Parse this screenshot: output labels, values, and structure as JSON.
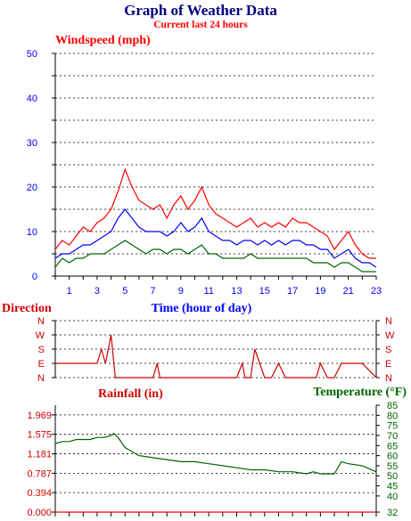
{
  "header": {
    "title": "Graph of Weather Data",
    "subtitle": "Current last 24 hours"
  },
  "colors": {
    "title": "#000080",
    "red": "#ff0000",
    "blue": "#0000ff",
    "green": "#006400",
    "darkred": "#cc0000",
    "axis": "#000000"
  },
  "chart_data": [
    {
      "type": "line",
      "panel": "wind",
      "title": "Windspeed (mph)",
      "xlabel": "Time (hour of day)",
      "ylabel": "Windspeed (mph)",
      "xlim": [
        0,
        23
      ],
      "ylim": [
        0,
        50
      ],
      "yticks": [
        0,
        10,
        20,
        30,
        40,
        50
      ],
      "xticks": [
        "1",
        "3",
        "5",
        "7",
        "9",
        "11",
        "13",
        "15",
        "17",
        "19",
        "21",
        "23"
      ],
      "grid": true,
      "series": [
        {
          "color": "#ff0000",
          "x": [
            0,
            0.5,
            1,
            1.5,
            2,
            2.5,
            3,
            3.5,
            4,
            4.5,
            5,
            5.5,
            6,
            6.5,
            7,
            7.5,
            8,
            8.5,
            9,
            9.5,
            10,
            10.5,
            11,
            11.5,
            12,
            12.5,
            13,
            13.5,
            14,
            14.5,
            15,
            15.5,
            16,
            16.5,
            17,
            17.5,
            18,
            18.5,
            19,
            19.5,
            20,
            20.5,
            21,
            21.5,
            22,
            22.5,
            23
          ],
          "values": [
            6,
            8,
            7,
            9,
            11,
            10,
            12,
            13,
            15,
            19,
            24,
            20,
            17,
            16,
            15,
            16,
            13,
            16,
            18,
            15,
            17,
            20,
            16,
            14,
            13,
            12,
            11,
            12,
            13,
            11,
            12,
            11,
            12,
            11,
            13,
            12,
            12,
            11,
            10,
            9,
            6,
            8,
            10,
            7,
            5,
            4,
            4
          ]
        },
        {
          "color": "#0000ff",
          "x": [
            0,
            0.5,
            1,
            1.5,
            2,
            2.5,
            3,
            3.5,
            4,
            4.5,
            5,
            5.5,
            6,
            6.5,
            7,
            7.5,
            8,
            8.5,
            9,
            9.5,
            10,
            10.5,
            11,
            11.5,
            12,
            12.5,
            13,
            13.5,
            14,
            14.5,
            15,
            15.5,
            16,
            16.5,
            17,
            17.5,
            18,
            18.5,
            19,
            19.5,
            20,
            20.5,
            21,
            21.5,
            22,
            22.5,
            23
          ],
          "values": [
            4,
            5,
            5,
            6,
            7,
            7,
            8,
            9,
            10,
            13,
            15,
            13,
            11,
            10,
            10,
            10,
            9,
            10,
            12,
            10,
            11,
            13,
            10,
            9,
            8,
            8,
            7,
            8,
            8,
            7,
            8,
            7,
            8,
            7,
            8,
            8,
            7,
            7,
            6,
            6,
            4,
            5,
            6,
            4,
            3,
            3,
            2
          ]
        },
        {
          "color": "#006400",
          "x": [
            0,
            0.5,
            1,
            1.5,
            2,
            2.5,
            3,
            3.5,
            4,
            4.5,
            5,
            5.5,
            6,
            6.5,
            7,
            7.5,
            8,
            8.5,
            9,
            9.5,
            10,
            10.5,
            11,
            11.5,
            12,
            12.5,
            13,
            13.5,
            14,
            14.5,
            15,
            15.5,
            16,
            16.5,
            17,
            17.5,
            18,
            18.5,
            19,
            19.5,
            20,
            20.5,
            21,
            21.5,
            22,
            22.5,
            23
          ],
          "values": [
            2,
            4,
            3,
            4,
            4,
            5,
            5,
            5,
            6,
            7,
            8,
            7,
            6,
            5,
            6,
            6,
            5,
            6,
            6,
            5,
            6,
            7,
            5,
            5,
            4,
            4,
            4,
            4,
            5,
            4,
            4,
            4,
            4,
            4,
            4,
            4,
            4,
            3,
            3,
            3,
            2,
            3,
            3,
            2,
            1,
            1,
            1
          ]
        }
      ]
    },
    {
      "type": "line",
      "panel": "direction",
      "title": "Direction",
      "xlim": [
        0,
        23
      ],
      "yticks": [
        "N",
        "W",
        "S",
        "E",
        "N"
      ],
      "grid": true,
      "series": [
        {
          "color": "#cc0000",
          "x": [
            0,
            1,
            2,
            3,
            3.3,
            3.6,
            4,
            4.3,
            4.6,
            5,
            6,
            7,
            7.3,
            7.5,
            8,
            9,
            10,
            11,
            12,
            13,
            13.4,
            13.6,
            14,
            14.3,
            15,
            15.5,
            16,
            16.5,
            17,
            18,
            18.7,
            19,
            19.5,
            20,
            20.5,
            21,
            22,
            23
          ],
          "values": [
            "E",
            "E",
            "E",
            "E",
            "S",
            "E",
            "W",
            "N",
            "N",
            "N",
            "N",
            "N",
            "E",
            "N",
            "N",
            "N",
            "N",
            "N",
            "N",
            "N",
            "E",
            "N",
            "N",
            "S",
            "N",
            "N",
            "E",
            "N",
            "N",
            "N",
            "N",
            "E",
            "N",
            "N",
            "E",
            "E",
            "E",
            "N"
          ]
        }
      ]
    },
    {
      "type": "line",
      "panel": "rain-temp",
      "title": "Rainfall (in) / Temperature (°F)",
      "ylabel_left": "Rainfall (in)",
      "ylabel_right": "Temperature (°F)",
      "ylim_left": [
        0,
        2.165
      ],
      "yticks_left": [
        "0.000",
        "0.394",
        "0.787",
        "1.181",
        "1.575",
        "1.969"
      ],
      "ylim_right": [
        32,
        85
      ],
      "yticks_right": [
        32,
        40,
        45,
        50,
        55,
        60,
        65,
        70,
        75,
        80,
        85
      ],
      "xlim": [
        0,
        23
      ],
      "grid": true,
      "series": [
        {
          "name": "Temperature (°F)",
          "color": "#006400",
          "x": [
            0,
            0.5,
            1,
            1.5,
            2,
            2.5,
            3,
            3.5,
            4,
            4.2,
            4.5,
            5,
            5.5,
            6,
            7,
            8,
            9,
            10,
            11,
            12,
            13,
            14,
            15,
            16,
            17,
            18,
            18.5,
            19,
            19.5,
            20,
            20.5,
            21,
            22,
            23
          ],
          "values": [
            66,
            67,
            67,
            68,
            68,
            68,
            69,
            69,
            70,
            71,
            69,
            64,
            62,
            60,
            59,
            58,
            57,
            57,
            56,
            55,
            54,
            53,
            53,
            52,
            52,
            51,
            52,
            51,
            51,
            51,
            57,
            56,
            55,
            52
          ]
        },
        {
          "name": "Rainfall (in)",
          "color": "#ff0000",
          "x": [
            0,
            23
          ],
          "values": [
            0,
            0
          ]
        }
      ]
    }
  ]
}
